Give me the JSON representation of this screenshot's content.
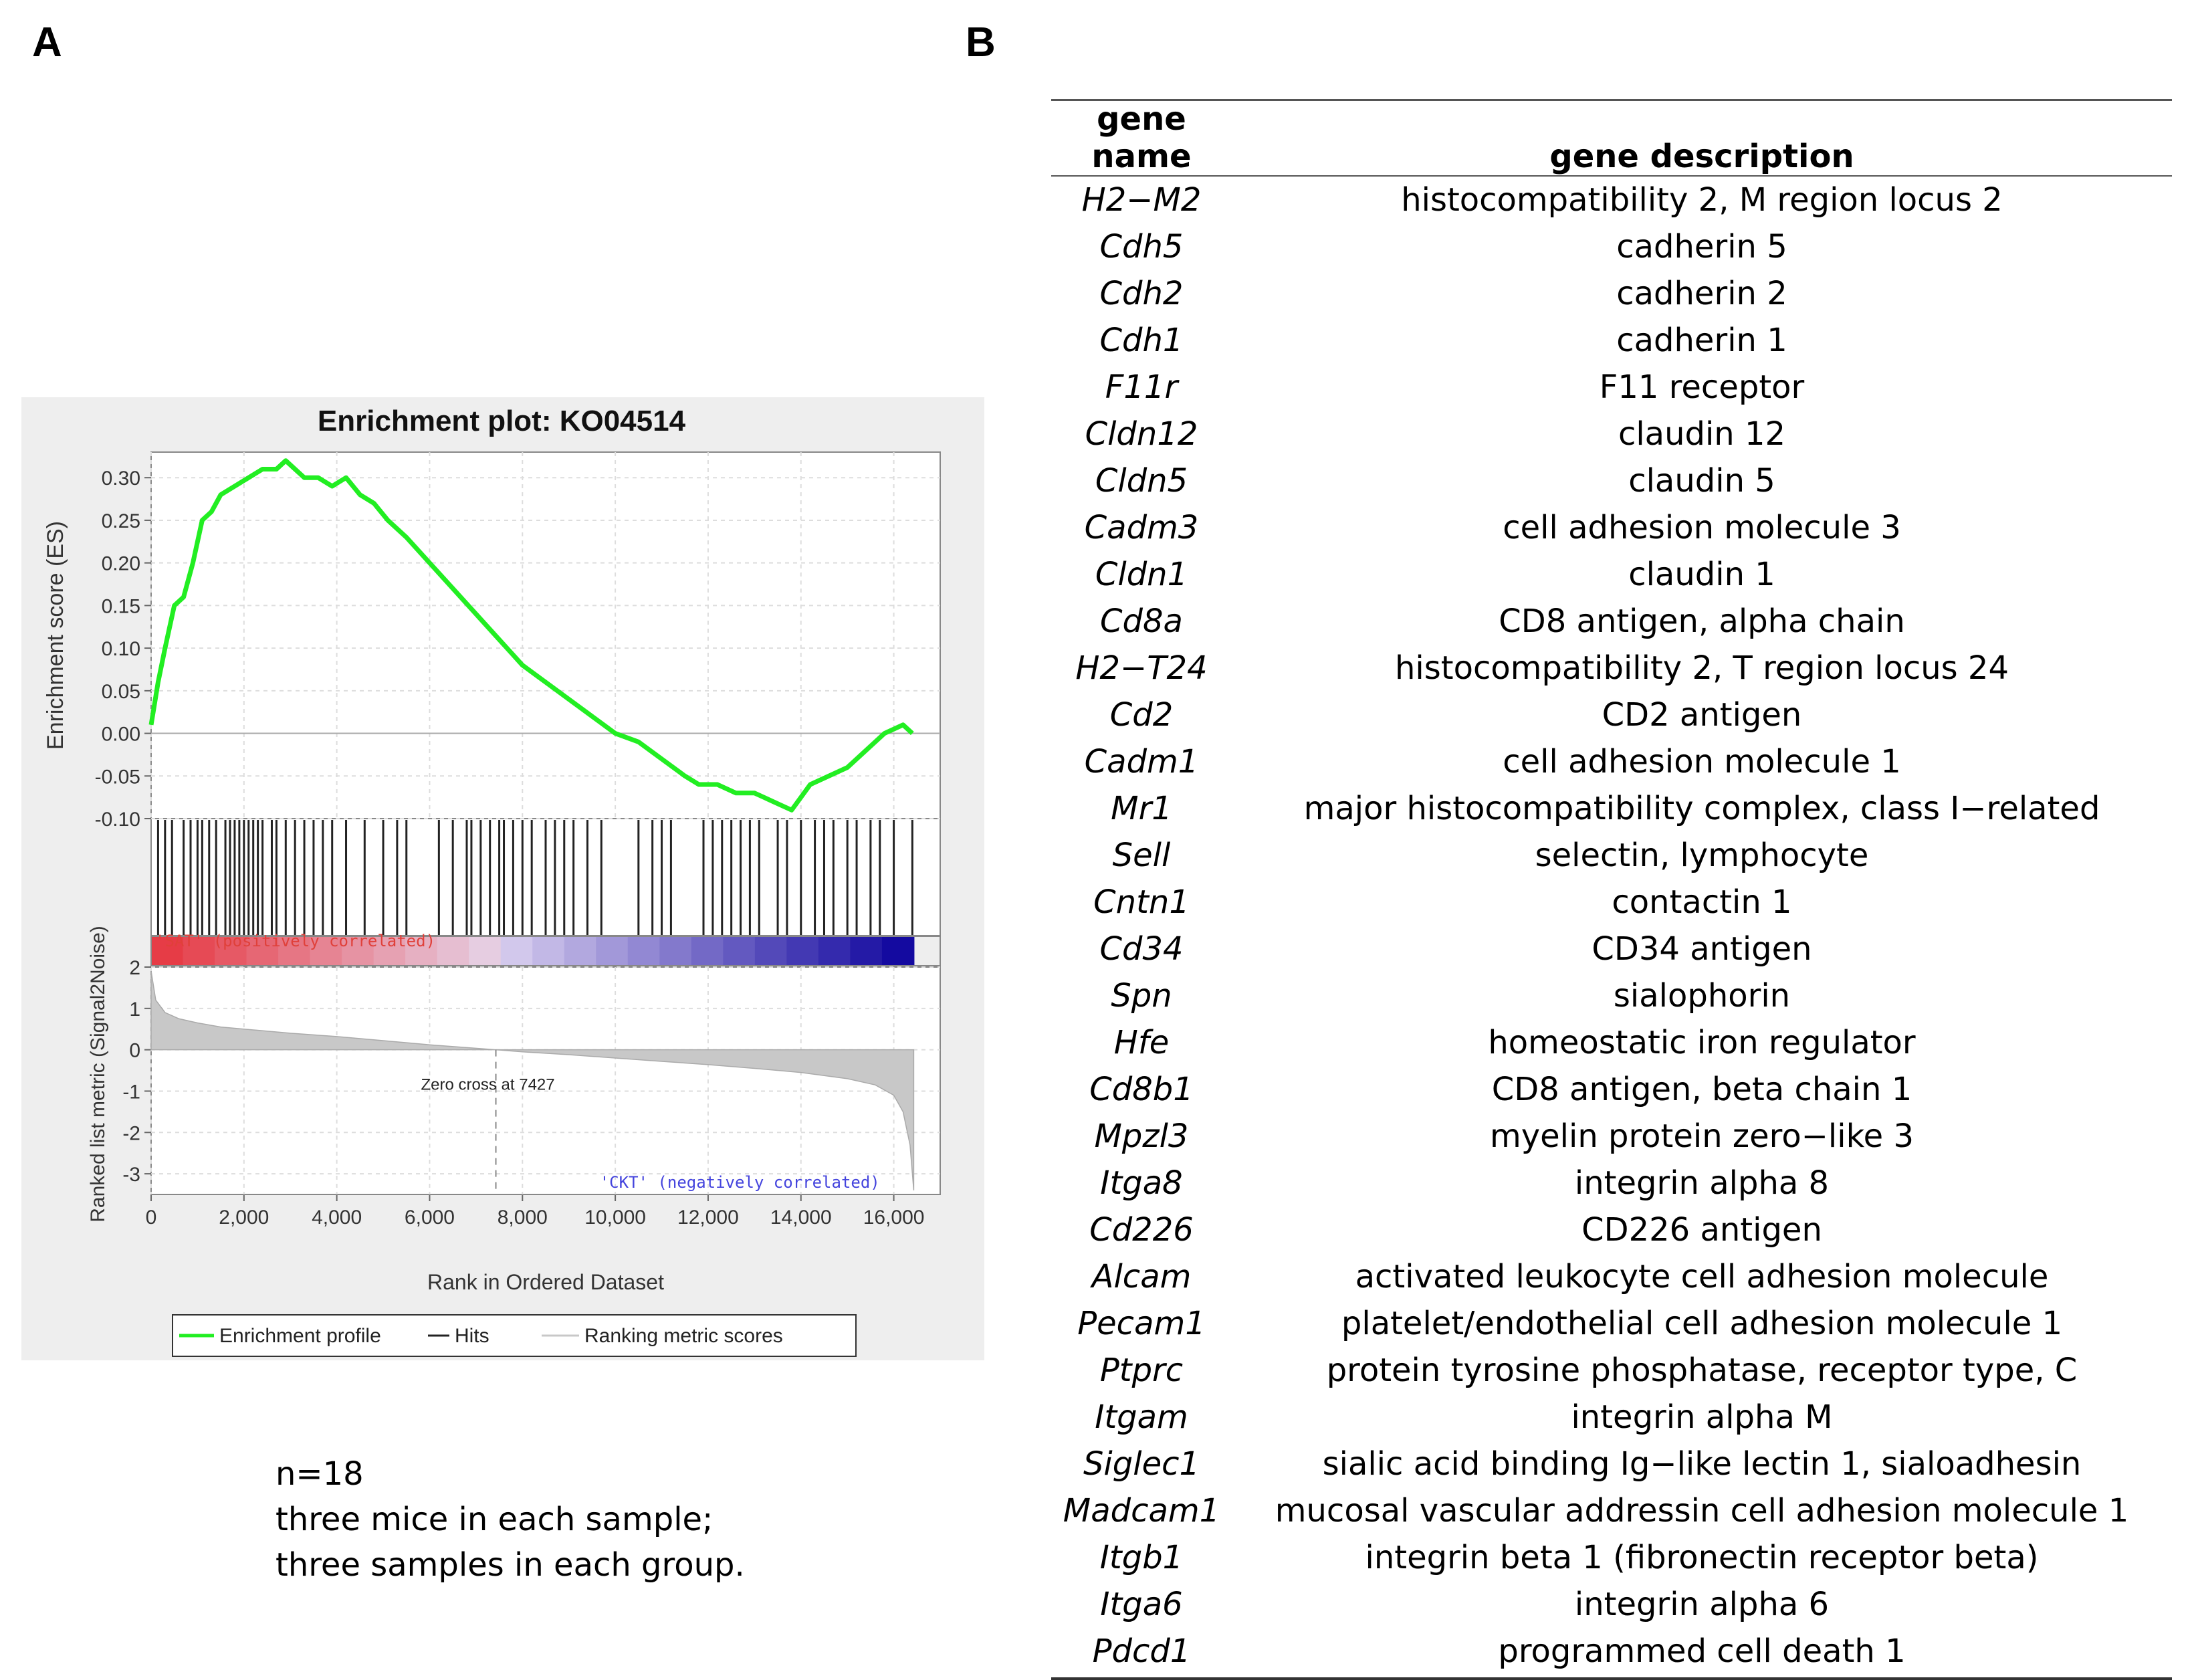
{
  "panels": {
    "a_label": "A",
    "b_label": "B"
  },
  "chart_data": {
    "type": "line",
    "title": "Enrichment plot: KO04514",
    "xlabel": "Rank in Ordered Dataset",
    "ylabel_top": "Enrichment score (ES)",
    "ylabel_bottom": "Ranked list metric (Signal2Noise)",
    "xlim": [
      0,
      17000
    ],
    "x_ticks": [
      0,
      2000,
      4000,
      6000,
      8000,
      10000,
      12000,
      14000,
      16000
    ],
    "x_tick_labels": [
      "0",
      "2,000",
      "4,000",
      "6,000",
      "8,000",
      "10,000",
      "12,000",
      "14,000",
      "16,000"
    ],
    "es_ylim": [
      -0.1,
      0.33
    ],
    "es_ticks": [
      0.3,
      0.25,
      0.2,
      0.15,
      0.1,
      0.05,
      0.0,
      -0.05,
      -0.1
    ],
    "es_tick_labels": [
      "0.30",
      "0.25",
      "0.20",
      "0.15",
      "0.10",
      "0.05",
      "0.00",
      "-0.05",
      "-0.10"
    ],
    "metric_ylim": [
      -3.5,
      2
    ],
    "metric_ticks": [
      2,
      1,
      0,
      -1,
      -2,
      -3
    ],
    "metric_tick_labels": [
      "2",
      "1",
      "0",
      "-1",
      "-2",
      "-3"
    ],
    "series": [
      {
        "name": "Enrichment profile",
        "color": "#22ee22",
        "x": [
          0,
          150,
          300,
          500,
          700,
          900,
          1100,
          1300,
          1500,
          1800,
          2100,
          2400,
          2700,
          2900,
          3100,
          3300,
          3600,
          3900,
          4200,
          4500,
          4800,
          5100,
          5500,
          6000,
          6500,
          7000,
          7500,
          8000,
          8500,
          9000,
          9500,
          10000,
          10500,
          11000,
          11500,
          11800,
          12200,
          12600,
          13000,
          13400,
          13800,
          14200,
          14600,
          15000,
          15400,
          15800,
          16200,
          16400
        ],
        "y": [
          0.01,
          0.06,
          0.1,
          0.15,
          0.16,
          0.2,
          0.25,
          0.26,
          0.28,
          0.29,
          0.3,
          0.31,
          0.31,
          0.32,
          0.31,
          0.3,
          0.3,
          0.29,
          0.3,
          0.28,
          0.27,
          0.25,
          0.23,
          0.2,
          0.17,
          0.14,
          0.11,
          0.08,
          0.06,
          0.04,
          0.02,
          0.0,
          -0.01,
          -0.03,
          -0.05,
          -0.06,
          -0.06,
          -0.07,
          -0.07,
          -0.08,
          -0.09,
          -0.06,
          -0.05,
          -0.04,
          -0.02,
          0.0,
          0.01,
          0.0
        ]
      },
      {
        "name": "Hits",
        "color": "#222222"
      },
      {
        "name": "Ranking metric scores",
        "color": "#c8c8c8"
      }
    ],
    "hits": [
      150,
      300,
      450,
      700,
      850,
      1000,
      1100,
      1250,
      1400,
      1600,
      1700,
      1800,
      1900,
      2000,
      2100,
      2200,
      2300,
      2400,
      2600,
      2700,
      2900,
      3100,
      3300,
      3500,
      3700,
      3900,
      4200,
      4600,
      5000,
      5300,
      5500,
      6200,
      6500,
      6800,
      6900,
      7100,
      7300,
      7500,
      7600,
      7800,
      8000,
      8200,
      8500,
      8700,
      8900,
      9100,
      9400,
      9700,
      10500,
      10800,
      11000,
      11200,
      11900,
      12100,
      12300,
      12500,
      12700,
      12900,
      13100,
      13500,
      13700,
      14000,
      14300,
      14500,
      14700,
      15000,
      15200,
      15500,
      15700,
      16000,
      16400
    ],
    "metric_curve": {
      "x": [
        0,
        100,
        300,
        600,
        1000,
        1500,
        2000,
        3000,
        4000,
        5000,
        6000,
        7427,
        8000,
        9000,
        10000,
        11000,
        12000,
        13000,
        14000,
        15000,
        15600,
        16000,
        16200,
        16350,
        16430
      ],
      "y": [
        1.9,
        1.2,
        0.9,
        0.75,
        0.65,
        0.55,
        0.5,
        0.4,
        0.32,
        0.22,
        0.12,
        0.0,
        -0.05,
        -0.12,
        -0.2,
        -0.28,
        -0.36,
        -0.45,
        -0.55,
        -0.7,
        -0.85,
        -1.1,
        -1.5,
        -2.3,
        -3.4
      ]
    },
    "zero_cross": {
      "x": 7427,
      "label": "Zero cross at 7427"
    },
    "annotations": {
      "positive": "'SAT' (positively correlated)",
      "negative": "'CKT' (negatively correlated)"
    },
    "legend": {
      "placement": "bottom",
      "items": [
        "Enrichment profile",
        "Hits",
        "Ranking metric scores"
      ]
    }
  },
  "note": {
    "line1": "n=18",
    "line2": "three mice in each sample;",
    "line3": "three samples in each group."
  },
  "table": {
    "headers": {
      "name": "gene name",
      "description": "gene description"
    },
    "rows": [
      {
        "name": "H2−M2",
        "description": "histocompatibility 2, M region locus 2"
      },
      {
        "name": "Cdh5",
        "description": "cadherin 5"
      },
      {
        "name": "Cdh2",
        "description": "cadherin 2"
      },
      {
        "name": "Cdh1",
        "description": "cadherin 1"
      },
      {
        "name": "F11r",
        "description": "F11 receptor"
      },
      {
        "name": "Cldn12",
        "description": "claudin 12"
      },
      {
        "name": "Cldn5",
        "description": "claudin 5"
      },
      {
        "name": "Cadm3",
        "description": "cell adhesion molecule 3"
      },
      {
        "name": "Cldn1",
        "description": "claudin 1"
      },
      {
        "name": "Cd8a",
        "description": "CD8 antigen, alpha chain"
      },
      {
        "name": "H2−T24",
        "description": "histocompatibility 2, T region locus 24"
      },
      {
        "name": "Cd2",
        "description": "CD2 antigen"
      },
      {
        "name": "Cadm1",
        "description": "cell adhesion molecule 1"
      },
      {
        "name": "Mr1",
        "description": "major histocompatibility complex, class I−related"
      },
      {
        "name": "Sell",
        "description": "selectin, lymphocyte"
      },
      {
        "name": "Cntn1",
        "description": "contactin 1"
      },
      {
        "name": "Cd34",
        "description": "CD34 antigen"
      },
      {
        "name": "Spn",
        "description": "sialophorin"
      },
      {
        "name": "Hfe",
        "description": "homeostatic iron regulator"
      },
      {
        "name": "Cd8b1",
        "description": "CD8 antigen, beta chain 1"
      },
      {
        "name": "Mpzl3",
        "description": "myelin protein zero−like 3"
      },
      {
        "name": "Itga8",
        "description": "integrin alpha 8"
      },
      {
        "name": "Cd226",
        "description": "CD226 antigen"
      },
      {
        "name": "Alcam",
        "description": "activated leukocyte cell adhesion molecule"
      },
      {
        "name": "Pecam1",
        "description": "platelet/endothelial cell adhesion molecule 1"
      },
      {
        "name": "Ptprc",
        "description": "protein tyrosine phosphatase, receptor type, C"
      },
      {
        "name": "Itgam",
        "description": "integrin alpha M"
      },
      {
        "name": "Siglec1",
        "description": "sialic acid binding Ig−like lectin 1, sialoadhesin"
      },
      {
        "name": "Madcam1",
        "description": "mucosal vascular addressin cell adhesion molecule 1"
      },
      {
        "name": "Itgb1",
        "description": "integrin beta 1 (fibronectin receptor beta)"
      },
      {
        "name": "Itga6",
        "description": "integrin alpha 6"
      },
      {
        "name": "Pdcd1",
        "description": "programmed cell death 1"
      }
    ]
  }
}
